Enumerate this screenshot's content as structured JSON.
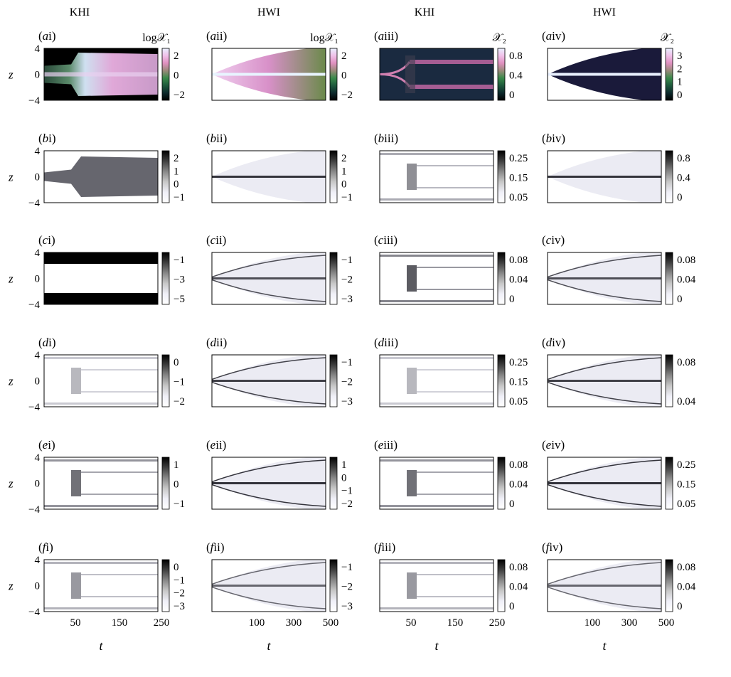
{
  "figure": {
    "column_headers": [
      "KHI",
      "HWI",
      "KHI",
      "HWI"
    ],
    "row_letters": [
      "a",
      "b",
      "c",
      "d",
      "e",
      "f"
    ],
    "column_numerals": [
      "i",
      "ii",
      "iii",
      "iv"
    ],
    "ylabel": "z",
    "xlabel": "t",
    "y_ticks": [
      "4",
      "0",
      "−4"
    ],
    "x_ticks": [
      [
        "50",
        "150",
        "250"
      ],
      [
        "100",
        "300",
        "500"
      ],
      [
        "50",
        "150",
        "250"
      ],
      [
        "100",
        "300",
        "500"
      ]
    ]
  },
  "colors": {
    "colormap_top": [
      "#000000",
      "#0d2a2c",
      "#1e5a3c",
      "#3a8a4a",
      "#9a8a7a",
      "#e090c0",
      "#f0c0e8",
      "#e8f0ff"
    ],
    "colormap_gray": [
      "#ffffff",
      "#f0f0f8",
      "#c8c8c8",
      "#888888",
      "#404040",
      "#000000"
    ]
  },
  "chart_data": [
    {
      "panel": "ai",
      "type": "heatmap",
      "column_header": "KHI",
      "colormap": "cubehelix",
      "colorbar_label": "log𝒳₁",
      "colorbar_ticks": [
        "2",
        "0",
        "−2"
      ],
      "xlim": [
        0,
        300
      ],
      "ylim": [
        -4,
        4
      ]
    },
    {
      "panel": "aii",
      "type": "heatmap",
      "column_header": "HWI",
      "colormap": "cubehelix",
      "colorbar_label": "log𝒳₁",
      "colorbar_ticks": [
        "2",
        "0",
        "−2"
      ],
      "xlim": [
        0,
        520
      ],
      "ylim": [
        -4,
        4
      ]
    },
    {
      "panel": "aiii",
      "type": "heatmap",
      "column_header": "KHI",
      "colormap": "cubehelix",
      "colorbar_label": "𝒳₂",
      "colorbar_ticks": [
        "0.8",
        "0.4",
        "0"
      ],
      "xlim": [
        0,
        300
      ],
      "ylim": [
        -4,
        4
      ]
    },
    {
      "panel": "aiv",
      "type": "heatmap",
      "column_header": "HWI",
      "colormap": "cubehelix",
      "colorbar_label": "𝒳₂",
      "colorbar_ticks": [
        "3",
        "2",
        "1",
        "0"
      ],
      "xlim": [
        0,
        520
      ],
      "ylim": [
        -4,
        4
      ]
    },
    {
      "panel": "bi",
      "type": "heatmap",
      "colormap": "gray",
      "colorbar_ticks": [
        "2",
        "1",
        "0",
        "−1"
      ],
      "xlim": [
        0,
        300
      ],
      "ylim": [
        -4,
        4
      ]
    },
    {
      "panel": "bii",
      "type": "heatmap",
      "colormap": "gray",
      "colorbar_ticks": [
        "2",
        "1",
        "0",
        "−1"
      ],
      "xlim": [
        0,
        520
      ],
      "ylim": [
        -4,
        4
      ]
    },
    {
      "panel": "biii",
      "type": "heatmap",
      "colormap": "gray",
      "colorbar_ticks": [
        "0.25",
        "0.15",
        "0.05"
      ],
      "xlim": [
        0,
        300
      ],
      "ylim": [
        -4,
        4
      ]
    },
    {
      "panel": "biv",
      "type": "heatmap",
      "colormap": "gray",
      "colorbar_ticks": [
        "0.8",
        "0.4",
        "0"
      ],
      "xlim": [
        0,
        520
      ],
      "ylim": [
        -4,
        4
      ]
    },
    {
      "panel": "ci",
      "type": "heatmap",
      "colormap": "gray",
      "colorbar_ticks": [
        "−1",
        "−3",
        "−5"
      ],
      "xlim": [
        0,
        300
      ],
      "ylim": [
        -4,
        4
      ]
    },
    {
      "panel": "cii",
      "type": "heatmap",
      "colormap": "gray",
      "colorbar_ticks": [
        "−1",
        "−2",
        "−3"
      ],
      "xlim": [
        0,
        520
      ],
      "ylim": [
        -4,
        4
      ]
    },
    {
      "panel": "ciii",
      "type": "heatmap",
      "colormap": "gray",
      "colorbar_ticks": [
        "0.08",
        "0.04",
        "0"
      ],
      "xlim": [
        0,
        300
      ],
      "ylim": [
        -4,
        4
      ]
    },
    {
      "panel": "civ",
      "type": "heatmap",
      "colormap": "gray",
      "colorbar_ticks": [
        "0.08",
        "0.04",
        "0"
      ],
      "xlim": [
        0,
        520
      ],
      "ylim": [
        -4,
        4
      ]
    },
    {
      "panel": "di",
      "type": "heatmap",
      "colormap": "gray",
      "colorbar_ticks": [
        "0",
        "−1",
        "−2"
      ],
      "xlim": [
        0,
        300
      ],
      "ylim": [
        -4,
        4
      ]
    },
    {
      "panel": "dii",
      "type": "heatmap",
      "colormap": "gray",
      "colorbar_ticks": [
        "−1",
        "−2",
        "−3"
      ],
      "xlim": [
        0,
        520
      ],
      "ylim": [
        -4,
        4
      ]
    },
    {
      "panel": "diii",
      "type": "heatmap",
      "colormap": "gray",
      "colorbar_ticks": [
        "0.25",
        "0.15",
        "0.05"
      ],
      "xlim": [
        0,
        300
      ],
      "ylim": [
        -4,
        4
      ]
    },
    {
      "panel": "div",
      "type": "heatmap",
      "colormap": "gray",
      "colorbar_ticks": [
        "0.08",
        "0.04"
      ],
      "xlim": [
        0,
        520
      ],
      "ylim": [
        -4,
        4
      ]
    },
    {
      "panel": "ei",
      "type": "heatmap",
      "colormap": "gray",
      "colorbar_ticks": [
        "1",
        "0",
        "−1"
      ],
      "xlim": [
        0,
        300
      ],
      "ylim": [
        -4,
        4
      ]
    },
    {
      "panel": "eii",
      "type": "heatmap",
      "colormap": "gray",
      "colorbar_ticks": [
        "1",
        "0",
        "−1",
        "−2"
      ],
      "xlim": [
        0,
        520
      ],
      "ylim": [
        -4,
        4
      ]
    },
    {
      "panel": "eiii",
      "type": "heatmap",
      "colormap": "gray",
      "colorbar_ticks": [
        "0.08",
        "0.04",
        "0"
      ],
      "xlim": [
        0,
        300
      ],
      "ylim": [
        -4,
        4
      ]
    },
    {
      "panel": "eiv",
      "type": "heatmap",
      "colormap": "gray",
      "colorbar_ticks": [
        "0.25",
        "0.15",
        "0.05"
      ],
      "xlim": [
        0,
        520
      ],
      "ylim": [
        -4,
        4
      ]
    },
    {
      "panel": "fi",
      "type": "heatmap",
      "colormap": "gray",
      "colorbar_ticks": [
        "0",
        "−1",
        "−2",
        "−3"
      ],
      "xlim": [
        0,
        300
      ],
      "ylim": [
        -4,
        4
      ]
    },
    {
      "panel": "fii",
      "type": "heatmap",
      "colormap": "gray",
      "colorbar_ticks": [
        "−1",
        "−2",
        "−3"
      ],
      "xlim": [
        0,
        520
      ],
      "ylim": [
        -4,
        4
      ]
    },
    {
      "panel": "fiii",
      "type": "heatmap",
      "colormap": "gray",
      "colorbar_ticks": [
        "0.08",
        "0.04",
        "0"
      ],
      "xlim": [
        0,
        300
      ],
      "ylim": [
        -4,
        4
      ]
    },
    {
      "panel": "fiv",
      "type": "heatmap",
      "colormap": "gray",
      "colorbar_ticks": [
        "0.08",
        "0.04",
        "0"
      ],
      "xlim": [
        0,
        520
      ],
      "ylim": [
        -4,
        4
      ]
    }
  ]
}
